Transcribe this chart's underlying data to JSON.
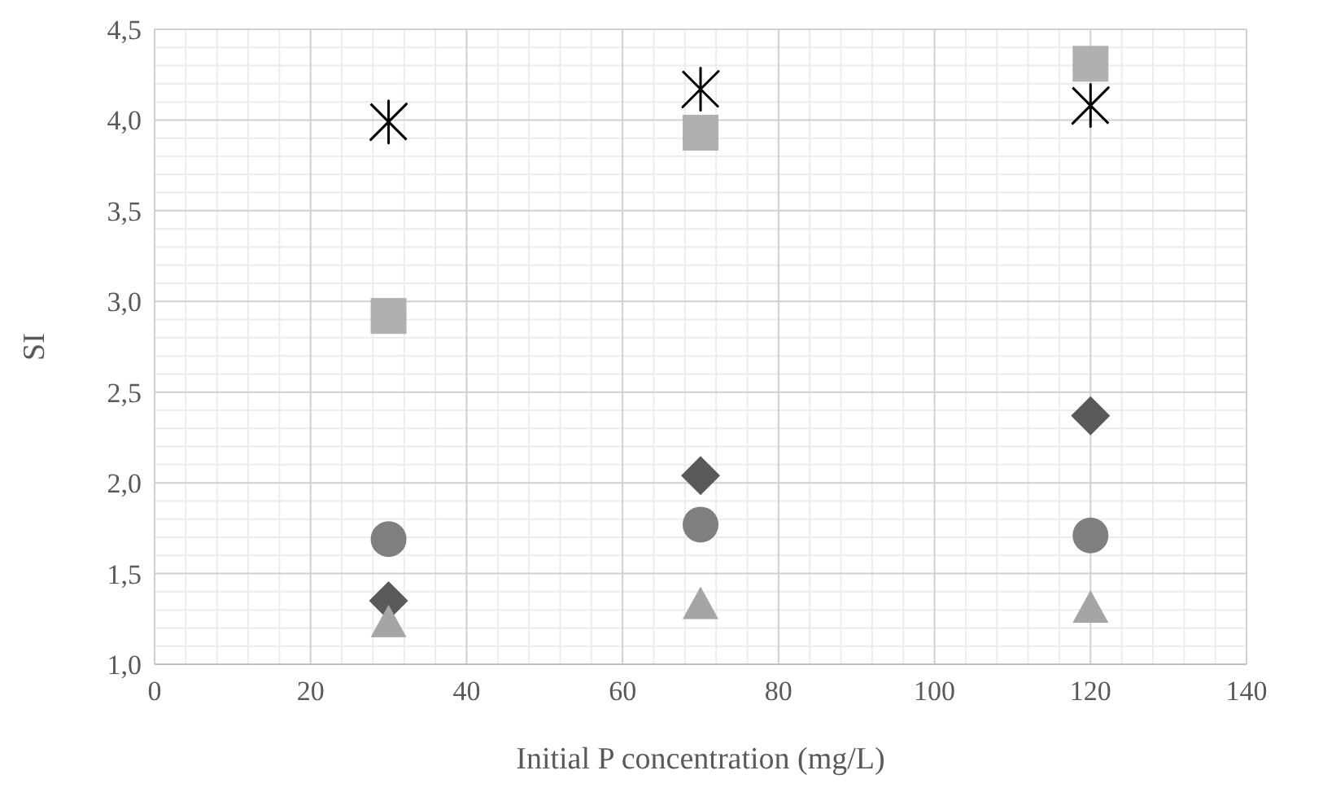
{
  "chart_data": {
    "type": "scatter",
    "xlabel": "Initial P concentration (mg/L)",
    "ylabel": "SI",
    "x": [
      30,
      70,
      120
    ],
    "series": [
      {
        "color": "#000000",
        "marker": "cross",
        "values": [
          3.99,
          4.17,
          4.08
        ]
      },
      {
        "color": "#b0b0b0",
        "marker": "square",
        "values": [
          2.92,
          3.93,
          4.31
        ]
      },
      {
        "color": "#595959",
        "marker": "diamond",
        "values": [
          1.35,
          2.04,
          2.37
        ]
      },
      {
        "color": "#7f7f7f",
        "marker": "circle",
        "values": [
          1.69,
          1.77,
          1.71
        ]
      },
      {
        "color": "#a5a5a5",
        "marker": "triangle",
        "values": [
          1.23,
          1.33,
          1.31
        ]
      }
    ],
    "xlim": [
      0,
      140
    ],
    "xticks": [
      0,
      20,
      40,
      60,
      80,
      100,
      120,
      140
    ],
    "ylim": [
      1,
      4.5
    ],
    "yticks": [
      {
        "value": 1,
        "label": "1,0"
      },
      {
        "value": 1.5,
        "label": "1,5"
      },
      {
        "value": 2,
        "label": "2,0"
      },
      {
        "value": 2.5,
        "label": "2,5"
      },
      {
        "value": 3,
        "label": "3,0"
      },
      {
        "value": 3.5,
        "label": "3,5"
      },
      {
        "value": 4,
        "label": "4,0"
      },
      {
        "value": 4.5,
        "label": "4,5"
      }
    ],
    "grid": true
  }
}
